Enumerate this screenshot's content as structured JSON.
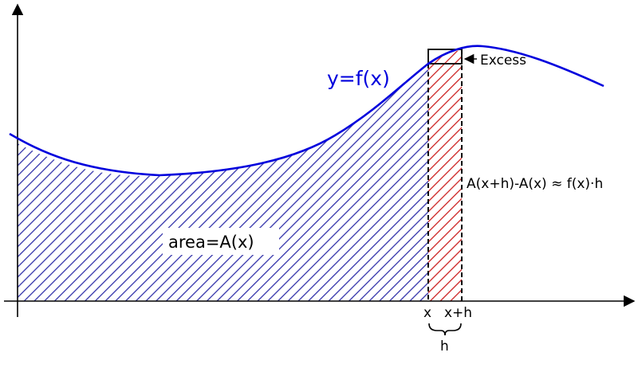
{
  "labels": {
    "curve": "y=f(x)",
    "area": "area=A(x)",
    "excess": "Excess",
    "difference": "A(x+h)-A(x) ≈ f(x)·h",
    "x": "x",
    "x_plus_h": "x+h",
    "h": "h"
  },
  "colors": {
    "curve": "#0000dd",
    "area_hatch": "#3333aa",
    "strip_hatch": "#cc2222",
    "axes": "#000000",
    "label_bg": "#ffffff"
  }
}
